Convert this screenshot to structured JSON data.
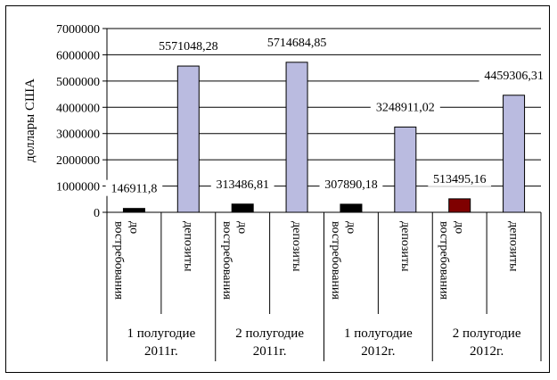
{
  "chart_data": {
    "type": "bar",
    "ylabel": "доллары США",
    "ylim": [
      0,
      7000000
    ],
    "yticks": [
      "0",
      "1000000",
      "2000000",
      "3000000",
      "4000000",
      "5000000",
      "6000000",
      "7000000"
    ],
    "grid": true,
    "periods": [
      {
        "label_line1": "1 полугодие",
        "label_line2": "2011г."
      },
      {
        "label_line1": "2 полугодие",
        "label_line2": "2011г."
      },
      {
        "label_line1": "1 полугодие",
        "label_line2": "2012г."
      },
      {
        "label_line1": "2 полугодие",
        "label_line2": "2012г."
      }
    ],
    "categories": [
      {
        "line1": "до",
        "line2": "востребования"
      },
      {
        "line1": "депозиты",
        "line2": ""
      },
      {
        "line1": "до",
        "line2": "востребования"
      },
      {
        "line1": "депозиты",
        "line2": ""
      },
      {
        "line1": "до",
        "line2": "востребования"
      },
      {
        "line1": "депозиты",
        "line2": ""
      },
      {
        "line1": "до",
        "line2": "востребования"
      },
      {
        "line1": "депозиты",
        "line2": ""
      }
    ],
    "values": [
      146911.8,
      5571048.28,
      313486.81,
      5714684.85,
      307890.18,
      3248911.02,
      513495.16,
      4459306.31
    ],
    "value_labels": [
      "146911,8",
      "5571048,28",
      "313486,81",
      "5714684,85",
      "307890,18",
      "3248911,02",
      "513495,16",
      "4459306,31"
    ],
    "colors": [
      "#000000",
      "#babbe0",
      "#000000",
      "#babbe0",
      "#000000",
      "#babbe0",
      "#7f0000",
      "#babbe0"
    ]
  }
}
